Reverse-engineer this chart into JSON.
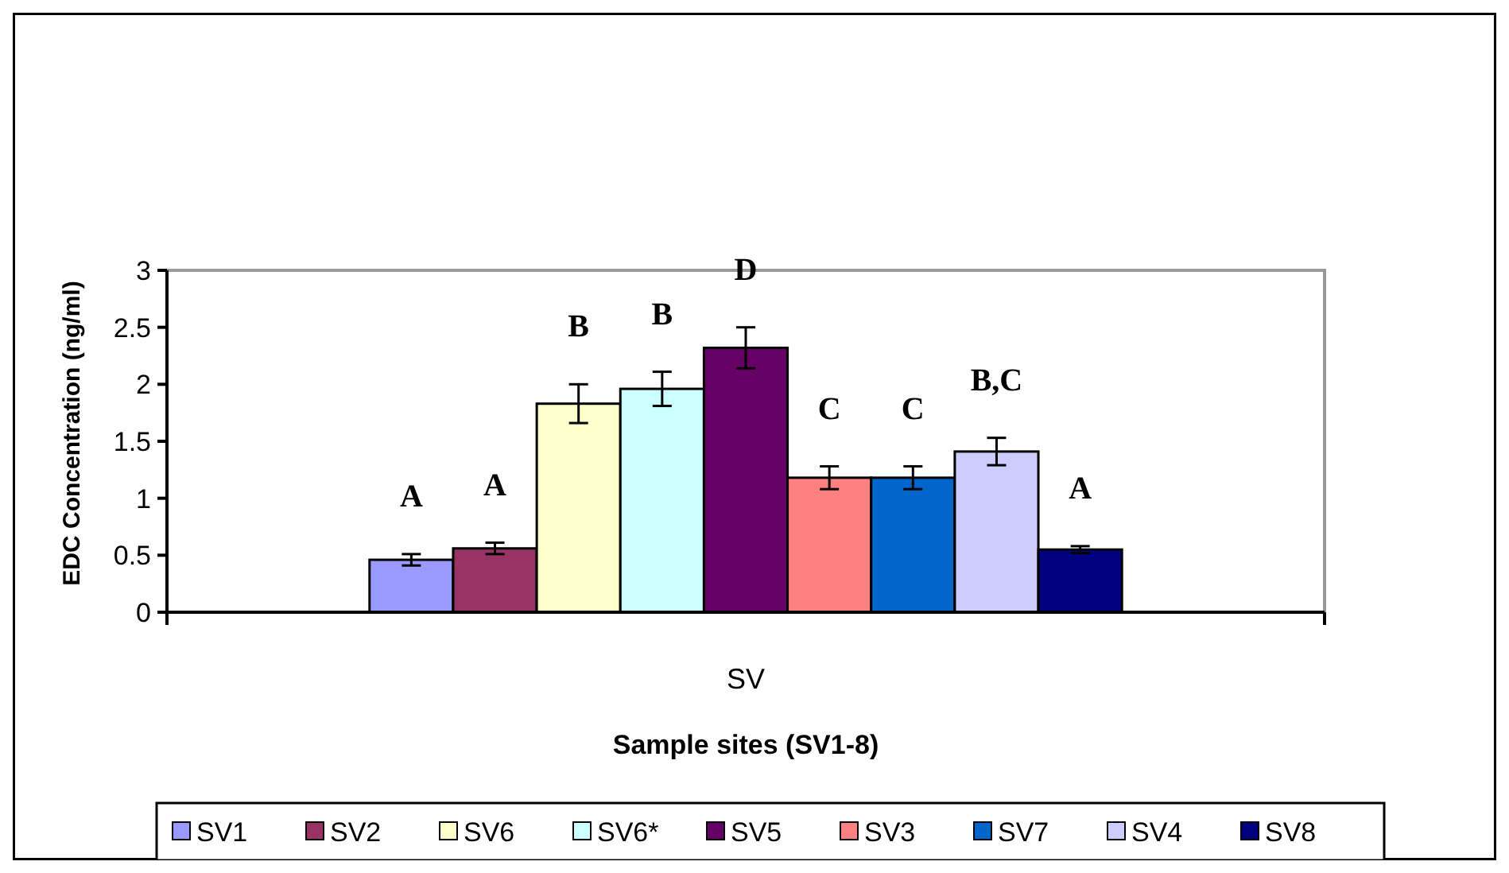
{
  "chart_data": {
    "type": "bar",
    "categories": [
      "SV"
    ],
    "xlabel": "Sample sites (SV1-8)",
    "ylabel": "EDC Concentration (ng/ml)",
    "ylim": [
      0,
      3
    ],
    "yticks": [
      0,
      0.5,
      1,
      1.5,
      2,
      2.5,
      3
    ],
    "grid": false,
    "legend": "bottom",
    "series": [
      {
        "name": "SV1",
        "color": "#9999ff",
        "values": [
          0.46
        ],
        "errors": [
          0.05
        ],
        "value_labels": [
          "A"
        ]
      },
      {
        "name": "SV2",
        "color": "#993366",
        "values": [
          0.56
        ],
        "errors": [
          0.05
        ],
        "value_labels": [
          "A"
        ]
      },
      {
        "name": "SV6",
        "color": "#ffffcc",
        "values": [
          1.83
        ],
        "errors": [
          0.17
        ],
        "value_labels": [
          "B"
        ]
      },
      {
        "name": "SV6*",
        "color": "#ccffff",
        "values": [
          1.96
        ],
        "errors": [
          0.15
        ],
        "value_labels": [
          "B"
        ]
      },
      {
        "name": "SV5",
        "color": "#660066",
        "values": [
          2.32
        ],
        "errors": [
          0.18
        ],
        "value_labels": [
          "D"
        ]
      },
      {
        "name": "SV3",
        "color": "#ff8080",
        "values": [
          1.18
        ],
        "errors": [
          0.1
        ],
        "value_labels": [
          "C"
        ]
      },
      {
        "name": "SV7",
        "color": "#0066cc",
        "values": [
          1.18
        ],
        "errors": [
          0.1
        ],
        "value_labels": [
          "C"
        ]
      },
      {
        "name": "SV4",
        "color": "#ccccff",
        "values": [
          1.41
        ],
        "errors": [
          0.12
        ],
        "value_labels": [
          "B,C"
        ]
      },
      {
        "name": "SV8",
        "color": "#000080",
        "values": [
          0.55
        ],
        "errors": [
          0.03
        ],
        "value_labels": [
          "A"
        ]
      }
    ]
  }
}
